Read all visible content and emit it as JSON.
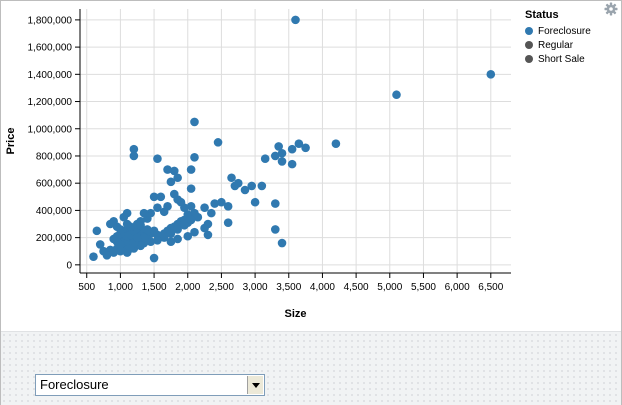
{
  "chart_data": {
    "type": "scatter",
    "xlabel": "Size",
    "ylabel": "Price",
    "xlim": [
      400,
      6800
    ],
    "ylim": [
      -60000,
      1880000
    ],
    "x_ticks": [
      500,
      1000,
      1500,
      2000,
      2500,
      3000,
      3500,
      4000,
      4500,
      5000,
      5500,
      6000,
      6500
    ],
    "x_tick_labels": [
      "500",
      "1,000",
      "1,500",
      "2,000",
      "2,500",
      "3,000",
      "3,500",
      "4,000",
      "4,500",
      "5,000",
      "5,500",
      "6,000",
      "6,500"
    ],
    "y_ticks": [
      0,
      200000,
      400000,
      600000,
      800000,
      1000000,
      1200000,
      1400000,
      1600000,
      1800000
    ],
    "y_tick_labels": [
      "0",
      "200,000",
      "400,000",
      "600,000",
      "800,000",
      "1,000,000",
      "1,200,000",
      "1,400,000",
      "1,600,000",
      "1,800,000"
    ],
    "grid": true,
    "legend_position": "top-right",
    "legend": {
      "title": "Status",
      "items": [
        {
          "label": "Foreclosure",
          "color": "#3079b0"
        },
        {
          "label": "Regular",
          "color": "#555555"
        },
        {
          "label": "Short Sale",
          "color": "#555555"
        }
      ]
    },
    "series": [
      {
        "name": "Foreclosure",
        "color": "#3079b0",
        "points": [
          [
            3600,
            1800000
          ],
          [
            6500,
            1400000
          ],
          [
            5100,
            1250000
          ],
          [
            2100,
            1050000
          ],
          [
            4200,
            890000
          ],
          [
            2450,
            900000
          ],
          [
            3650,
            890000
          ],
          [
            3750,
            860000
          ],
          [
            3350,
            870000
          ],
          [
            3550,
            850000
          ],
          [
            3400,
            820000
          ],
          [
            3150,
            780000
          ],
          [
            3300,
            800000
          ],
          [
            3400,
            760000
          ],
          [
            3550,
            740000
          ],
          [
            1200,
            850000
          ],
          [
            1200,
            800000
          ],
          [
            1550,
            780000
          ],
          [
            2100,
            790000
          ],
          [
            2650,
            640000
          ],
          [
            2750,
            600000
          ],
          [
            2700,
            580000
          ],
          [
            2950,
            580000
          ],
          [
            3100,
            580000
          ],
          [
            2050,
            700000
          ],
          [
            1800,
            690000
          ],
          [
            1700,
            700000
          ],
          [
            1850,
            640000
          ],
          [
            1750,
            610000
          ],
          [
            2850,
            550000
          ],
          [
            2050,
            560000
          ],
          [
            3000,
            460000
          ],
          [
            3300,
            450000
          ],
          [
            2600,
            430000
          ],
          [
            2500,
            460000
          ],
          [
            2400,
            450000
          ],
          [
            2250,
            420000
          ],
          [
            2350,
            380000
          ],
          [
            2300,
            300000
          ],
          [
            2250,
            270000
          ],
          [
            2150,
            350000
          ],
          [
            2100,
            380000
          ],
          [
            2000,
            370000
          ],
          [
            2050,
            430000
          ],
          [
            1950,
            420000
          ],
          [
            1900,
            460000
          ],
          [
            1850,
            480000
          ],
          [
            1800,
            520000
          ],
          [
            1700,
            430000
          ],
          [
            1650,
            390000
          ],
          [
            1600,
            500000
          ],
          [
            1500,
            500000
          ],
          [
            1550,
            420000
          ],
          [
            1450,
            380000
          ],
          [
            1400,
            340000
          ],
          [
            1350,
            380000
          ],
          [
            1300,
            320000
          ],
          [
            1250,
            300000
          ],
          [
            1100,
            380000
          ],
          [
            1050,
            350000
          ],
          [
            900,
            320000
          ],
          [
            850,
            300000
          ],
          [
            950,
            280000
          ],
          [
            1000,
            260000
          ],
          [
            1050,
            240000
          ],
          [
            1100,
            260000
          ],
          [
            1150,
            240000
          ],
          [
            1200,
            220000
          ],
          [
            1250,
            230000
          ],
          [
            1300,
            250000
          ],
          [
            1350,
            240000
          ],
          [
            1400,
            220000
          ],
          [
            1450,
            230000
          ],
          [
            1500,
            250000
          ],
          [
            1550,
            220000
          ],
          [
            1600,
            210000
          ],
          [
            1650,
            230000
          ],
          [
            1700,
            250000
          ],
          [
            1750,
            270000
          ],
          [
            1800,
            280000
          ],
          [
            1850,
            300000
          ],
          [
            1900,
            320000
          ],
          [
            1950,
            330000
          ],
          [
            2000,
            310000
          ],
          [
            2050,
            330000
          ],
          [
            1950,
            290000
          ],
          [
            1850,
            260000
          ],
          [
            1750,
            230000
          ],
          [
            1650,
            200000
          ],
          [
            1550,
            180000
          ],
          [
            1450,
            170000
          ],
          [
            1350,
            160000
          ],
          [
            1250,
            150000
          ],
          [
            1150,
            140000
          ],
          [
            1050,
            130000
          ],
          [
            950,
            120000
          ],
          [
            850,
            110000
          ],
          [
            750,
            100000
          ],
          [
            700,
            150000
          ],
          [
            650,
            250000
          ],
          [
            600,
            60000
          ],
          [
            800,
            70000
          ],
          [
            900,
            90000
          ],
          [
            1000,
            100000
          ],
          [
            1100,
            110000
          ],
          [
            1200,
            120000
          ],
          [
            1300,
            180000
          ],
          [
            1400,
            190000
          ],
          [
            1500,
            50000
          ],
          [
            1750,
            170000
          ],
          [
            1850,
            190000
          ],
          [
            2000,
            210000
          ],
          [
            2100,
            240000
          ],
          [
            2300,
            220000
          ],
          [
            2600,
            310000
          ],
          [
            3400,
            160000
          ],
          [
            3300,
            260000
          ],
          [
            1000,
            200000
          ],
          [
            1050,
            180000
          ],
          [
            1100,
            170000
          ],
          [
            1150,
            200000
          ],
          [
            1200,
            190000
          ],
          [
            1050,
            220000
          ],
          [
            1100,
            210000
          ],
          [
            1150,
            220000
          ],
          [
            1000,
            230000
          ],
          [
            1200,
            250000
          ],
          [
            1250,
            270000
          ],
          [
            950,
            210000
          ],
          [
            900,
            190000
          ],
          [
            1300,
            210000
          ],
          [
            1350,
            200000
          ],
          [
            1400,
            260000
          ],
          [
            1150,
            280000
          ],
          [
            1100,
            300000
          ],
          [
            1250,
            180000
          ],
          [
            1300,
            140000
          ],
          [
            1000,
            150000
          ],
          [
            950,
            170000
          ],
          [
            1100,
            90000
          ],
          [
            1200,
            160000
          ],
          [
            1150,
            120000
          ],
          [
            1250,
            200000
          ],
          [
            1300,
            290000
          ]
        ]
      }
    ]
  },
  "controls": {
    "status_select": {
      "value": "Foreclosure",
      "options": [
        "Foreclosure",
        "Regular",
        "Short Sale"
      ]
    }
  },
  "icons": {
    "settings": "gear-icon",
    "dropdown": "chevron-down-icon"
  }
}
